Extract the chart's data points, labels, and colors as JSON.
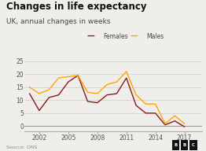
{
  "title": "Changes in life expectancy",
  "subtitle": "UK, annual changes in weeks",
  "source": "Source: ONS",
  "years": [
    2001,
    2002,
    2003,
    2004,
    2005,
    2006,
    2007,
    2008,
    2009,
    2010,
    2011,
    2012,
    2013,
    2014,
    2015,
    2016,
    2017,
    2018
  ],
  "females": [
    12.5,
    6.0,
    11.0,
    12.0,
    17.0,
    19.5,
    9.5,
    9.0,
    12.0,
    12.5,
    18.5,
    8.0,
    5.0,
    5.0,
    0.5,
    2.0,
    -0.2,
    null
  ],
  "males": [
    15.0,
    12.5,
    14.0,
    18.5,
    19.0,
    19.5,
    13.0,
    12.5,
    16.0,
    17.0,
    21.0,
    12.0,
    8.5,
    8.5,
    1.0,
    4.0,
    1.0,
    null
  ],
  "female_color": "#8B1A1A",
  "male_color": "#FFA500",
  "background_color": "#f0eeeb",
  "grid_color": "#cccccc",
  "title_fontsize": 8.5,
  "subtitle_fontsize": 6.5,
  "tick_fontsize": 5.5,
  "legend_fontsize": 5.5,
  "yticks": [
    0,
    5,
    10,
    15,
    20,
    25
  ],
  "xticks": [
    2002,
    2005,
    2008,
    2011,
    2014,
    2017
  ],
  "ylim": [
    -2,
    27
  ],
  "xlim": [
    2000.5,
    2018.8
  ]
}
